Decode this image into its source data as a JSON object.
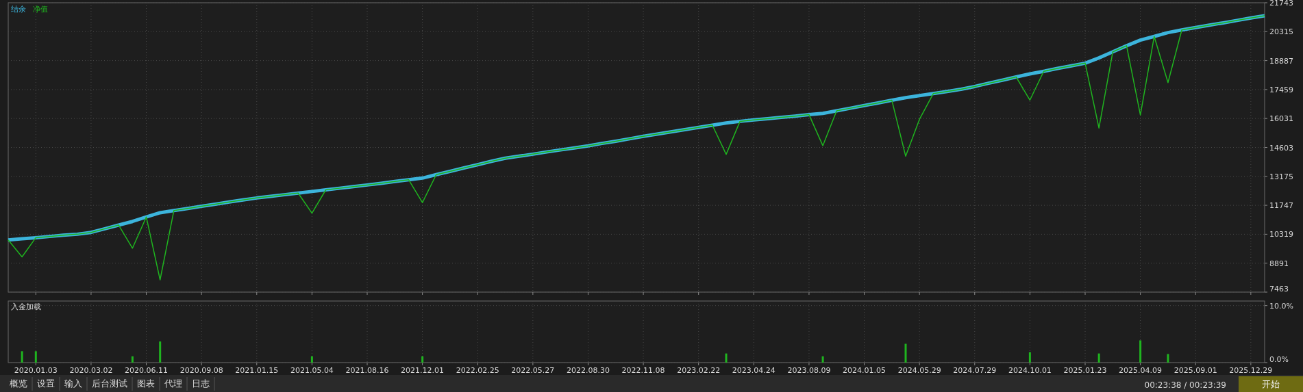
{
  "chart_data": [
    {
      "type": "line",
      "legend": "top left",
      "grid": true,
      "tick_labels": "y",
      "categories": [
        null,
        null,
        "2020.01.03",
        null,
        null,
        null,
        "2020.03.02",
        null,
        null,
        null,
        "2020.06.11",
        null,
        null,
        null,
        "2020.09.08",
        null,
        null,
        null,
        "2021.01.15",
        null,
        null,
        null,
        "2021.05.04",
        null,
        null,
        null,
        "2021.08.16",
        null,
        null,
        null,
        "2021.12.01",
        null,
        null,
        null,
        "2022.02.25",
        null,
        null,
        null,
        "2022.05.27",
        null,
        null,
        null,
        "2022.08.30",
        null,
        null,
        null,
        "2022.11.08",
        null,
        null,
        null,
        "2023.02.22",
        null,
        null,
        null,
        "2023.04.24",
        null,
        null,
        null,
        "2023.08.09",
        null,
        null,
        null,
        "2024.01.05",
        null,
        null,
        null,
        "2024.05.29",
        null,
        null,
        null,
        "2024.07.29",
        null,
        null,
        null,
        "2024.10.01",
        null,
        null,
        null,
        "2025.01.23",
        null,
        null,
        null,
        "2025.04.09",
        null,
        null,
        null,
        "2025.09.01",
        null,
        null,
        null,
        "2025.12.29",
        null
      ],
      "ylim": [
        7463,
        21743
      ],
      "yticks": [
        7463,
        8891,
        10319,
        11747,
        13175,
        14603,
        16031,
        17459,
        18887,
        20315,
        21743
      ],
      "series": [
        {
          "name": "结余",
          "color": "#3cb4dc",
          "values": [
            10040,
            10100,
            10150,
            10210,
            10270,
            10320,
            10410,
            10590,
            10770,
            10950,
            11170,
            11380,
            11490,
            11590,
            11700,
            11800,
            11910,
            12010,
            12110,
            12190,
            12270,
            12350,
            12430,
            12510,
            12590,
            12670,
            12750,
            12830,
            12920,
            13010,
            13090,
            13260,
            13420,
            13590,
            13750,
            13920,
            14070,
            14170,
            14270,
            14380,
            14480,
            14580,
            14680,
            14800,
            14910,
            15030,
            15150,
            15260,
            15370,
            15480,
            15590,
            15700,
            15810,
            15890,
            15960,
            16020,
            16090,
            16150,
            16220,
            16280,
            16410,
            16540,
            16670,
            16800,
            16930,
            17060,
            17160,
            17260,
            17360,
            17470,
            17610,
            17770,
            17920,
            18080,
            18230,
            18360,
            18500,
            18630,
            18760,
            19020,
            19320,
            19620,
            19900,
            20080,
            20270,
            20400,
            20520,
            20640,
            20750,
            20870,
            20990,
            21100
          ]
        },
        {
          "name": "净值",
          "color": "#1fb41f",
          "values": [
            10040,
            9200,
            10150,
            10210,
            10270,
            10320,
            10410,
            10590,
            10770,
            9630,
            11170,
            8070,
            11490,
            11590,
            11700,
            11800,
            11910,
            12010,
            12110,
            12190,
            12270,
            12350,
            11360,
            12510,
            12590,
            12670,
            12750,
            12830,
            12920,
            13010,
            11880,
            13260,
            13420,
            13590,
            13750,
            13920,
            14070,
            14170,
            14270,
            14380,
            14480,
            14580,
            14680,
            14800,
            14910,
            15030,
            15150,
            15260,
            15370,
            15480,
            15590,
            15700,
            14260,
            15890,
            15960,
            16020,
            16090,
            16150,
            16220,
            14690,
            16410,
            16540,
            16670,
            16800,
            16930,
            14170,
            15990,
            17260,
            17360,
            17470,
            17610,
            17770,
            17920,
            18080,
            16940,
            18360,
            18500,
            18630,
            18760,
            15560,
            19320,
            19620,
            16200,
            20080,
            17800,
            20400,
            20520,
            20640,
            20750,
            20870,
            20990,
            21100
          ]
        }
      ]
    },
    {
      "type": "bar",
      "title": "入金加载",
      "grid": true,
      "categories": [
        null,
        null,
        "2020.01.03",
        null,
        null,
        null,
        "2020.03.02",
        null,
        null,
        null,
        "2020.06.11",
        null,
        null,
        null,
        "2020.09.08",
        null,
        null,
        null,
        "2021.01.15",
        null,
        null,
        null,
        "2021.05.04",
        null,
        null,
        null,
        "2021.08.16",
        null,
        null,
        null,
        "2021.12.01",
        null,
        null,
        null,
        "2022.02.25",
        null,
        null,
        null,
        "2022.05.27",
        null,
        null,
        null,
        "2022.08.30",
        null,
        null,
        null,
        "2022.11.08",
        null,
        null,
        null,
        "2023.02.22",
        null,
        null,
        null,
        "2023.04.24",
        null,
        null,
        null,
        "2023.08.09",
        null,
        null,
        null,
        "2024.01.05",
        null,
        null,
        null,
        "2024.05.29",
        null,
        null,
        null,
        "2024.07.29",
        null,
        null,
        null,
        "2024.10.01",
        null,
        null,
        null,
        "2025.01.23",
        null,
        null,
        null,
        "2025.04.09",
        null,
        null,
        null,
        "2025.09.01",
        null,
        null,
        null,
        "2025.12.29",
        null
      ],
      "ylim": [
        0,
        10.8
      ],
      "yticks": [
        {
          "value": 0,
          "label": "0.0%"
        },
        {
          "value": 10,
          "label": "10.0%"
        }
      ],
      "values": [
        null,
        2.0,
        2.0,
        null,
        null,
        null,
        null,
        null,
        null,
        1.1,
        null,
        3.7,
        null,
        null,
        null,
        null,
        null,
        null,
        null,
        null,
        null,
        null,
        1.1,
        null,
        null,
        null,
        null,
        null,
        null,
        null,
        1.1,
        null,
        null,
        null,
        null,
        null,
        null,
        null,
        null,
        null,
        null,
        null,
        null,
        null,
        null,
        null,
        null,
        null,
        null,
        null,
        null,
        null,
        1.6,
        null,
        null,
        null,
        null,
        null,
        null,
        1.1,
        null,
        null,
        null,
        null,
        null,
        3.3,
        null,
        null,
        null,
        null,
        null,
        null,
        null,
        null,
        1.8,
        null,
        null,
        null,
        null,
        1.6,
        null,
        null,
        3.9,
        null,
        1.5,
        null,
        null,
        null,
        null,
        null,
        null,
        null
      ],
      "color": "#1fb41f",
      "annotations": [
        "概览",
        "设置",
        "输入",
        "后台测试",
        "图表",
        "代理",
        "日志",
        "00:23:38 / 00:23:39",
        "开始"
      ]
    }
  ]
}
